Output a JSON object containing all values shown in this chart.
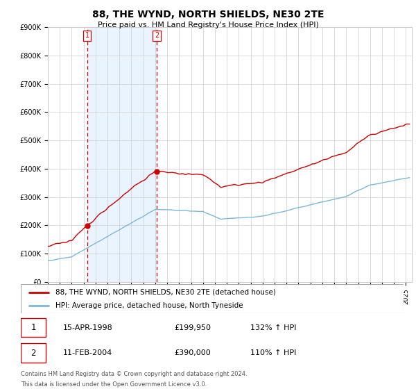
{
  "title": "88, THE WYND, NORTH SHIELDS, NE30 2TE",
  "subtitle": "Price paid vs. HM Land Registry's House Price Index (HPI)",
  "legend_line1": "88, THE WYND, NORTH SHIELDS, NE30 2TE (detached house)",
  "legend_line2": "HPI: Average price, detached house, North Tyneside",
  "footer1": "Contains HM Land Registry data © Crown copyright and database right 2024.",
  "footer2": "This data is licensed under the Open Government Licence v3.0.",
  "sale1_date": "15-APR-1998",
  "sale1_price": "£199,950",
  "sale1_hpi": "132% ↑ HPI",
  "sale1_year": 1998.29,
  "sale1_value": 199950,
  "sale2_date": "11-FEB-2004",
  "sale2_price": "£390,000",
  "sale2_hpi": "110% ↑ HPI",
  "sale2_year": 2004.12,
  "sale2_value": 390000,
  "hpi_color": "#7ab8d9",
  "price_color": "#cc0000",
  "shade_color": "#ddeeff",
  "vline_color": "#cc0000",
  "grid_color": "#cccccc",
  "background_color": "#ffffff",
  "ylim": [
    0,
    900000
  ],
  "yticks": [
    0,
    100000,
    200000,
    300000,
    400000,
    500000,
    600000,
    700000,
    800000,
    900000
  ],
  "ytick_labels": [
    "£0",
    "£100K",
    "£200K",
    "£300K",
    "£400K",
    "£500K",
    "£600K",
    "£700K",
    "£800K",
    "£900K"
  ],
  "xlim_start": 1995.0,
  "xlim_end": 2025.5
}
